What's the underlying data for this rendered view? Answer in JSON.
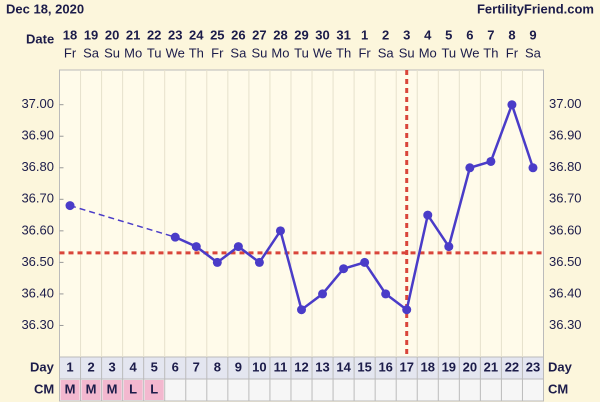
{
  "chart_data": {
    "type": "line",
    "title": "Dec 18, 2020",
    "site": "FertilityFriend.com",
    "date_label": "Date",
    "day_label": "Day",
    "cm_label": "CM",
    "dates": [
      "18",
      "19",
      "20",
      "21",
      "22",
      "23",
      "24",
      "25",
      "26",
      "27",
      "28",
      "29",
      "30",
      "31",
      "1",
      "2",
      "3",
      "4",
      "5",
      "6",
      "7",
      "8",
      "9"
    ],
    "weekdays": [
      "Fr",
      "Sa",
      "Su",
      "Mo",
      "Tu",
      "We",
      "Th",
      "Fr",
      "Sa",
      "Su",
      "Mo",
      "Tu",
      "We",
      "Th",
      "Fr",
      "Sa",
      "Su",
      "Mo",
      "Tu",
      "We",
      "Th",
      "Fr",
      "Sa"
    ],
    "categories": [
      1,
      2,
      3,
      4,
      5,
      6,
      7,
      8,
      9,
      10,
      11,
      12,
      13,
      14,
      15,
      16,
      17,
      18,
      19,
      20,
      21,
      22,
      23
    ],
    "cm": [
      "M",
      "M",
      "M",
      "L",
      "L",
      null,
      null,
      null,
      null,
      null,
      null,
      null,
      null,
      null,
      null,
      null,
      null,
      null,
      null,
      null,
      null,
      null,
      null
    ],
    "series": [
      {
        "color": "#4a3cc8",
        "values": [
          36.68,
          null,
          null,
          null,
          null,
          36.58,
          36.55,
          36.5,
          36.55,
          36.5,
          36.6,
          36.35,
          36.4,
          36.48,
          36.5,
          36.4,
          36.35,
          36.65,
          36.55,
          36.8,
          36.82,
          37.0,
          36.8
        ]
      }
    ],
    "coverline": 36.53,
    "ovulation_day": 17,
    "marker_color": "#d9453b",
    "ylim": [
      36.2,
      37.11
    ],
    "yticks": [
      {
        "value": 36.3,
        "label": "36.30"
      },
      {
        "value": 36.4,
        "label": "36.40"
      },
      {
        "value": 36.5,
        "label": "36.50"
      },
      {
        "value": 36.6,
        "label": "36.60"
      },
      {
        "value": 36.7,
        "label": "36.70"
      },
      {
        "value": 36.8,
        "label": "36.80"
      },
      {
        "value": 36.9,
        "label": "36.90"
      },
      {
        "value": 37.0,
        "label": "37.00"
      }
    ]
  }
}
